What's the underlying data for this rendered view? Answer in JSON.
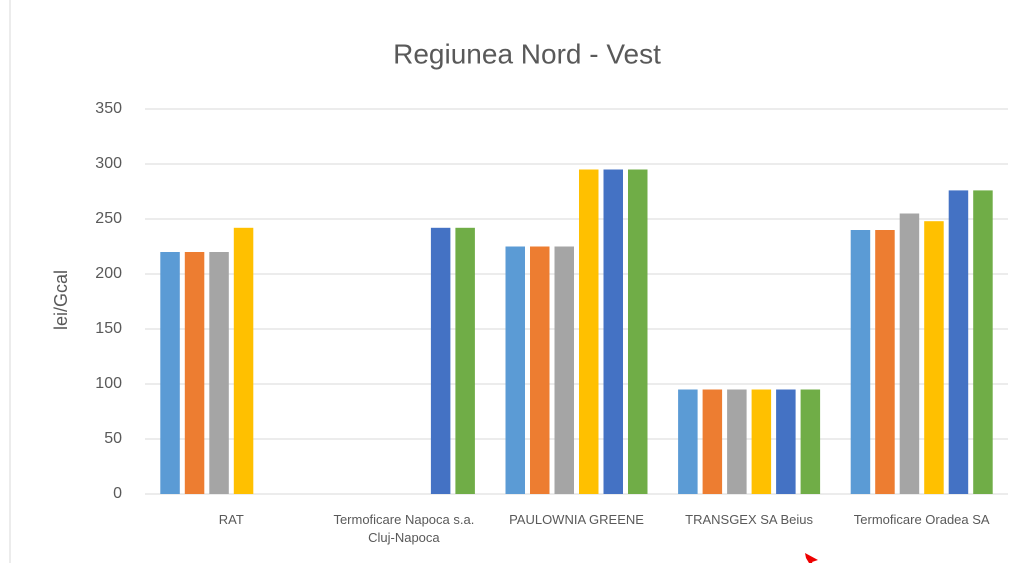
{
  "chart_data": {
    "type": "bar",
    "title": "Regiunea Nord - Vest",
    "y_label": "lei/Gcal",
    "categories": [
      "RAT",
      "Termoficare Napoca s.a. Cluj-Napoca",
      "PAULOWNIA GREENE",
      "TRANSGEX SA Beius",
      "Termoficare Oradea SA"
    ],
    "series": [
      {
        "color": "#5b9bd5",
        "values": [
          220,
          null,
          225,
          95,
          240
        ]
      },
      {
        "color": "#ed7d31",
        "values": [
          220,
          null,
          225,
          95,
          240
        ]
      },
      {
        "color": "#a5a5a5",
        "values": [
          220,
          null,
          225,
          95,
          255
        ]
      },
      {
        "color": "#ffc000",
        "values": [
          242,
          null,
          295,
          95,
          248
        ]
      },
      {
        "color": "#4472c4",
        "values": [
          null,
          242,
          295,
          95,
          276
        ]
      },
      {
        "color": "#70ad47",
        "values": [
          null,
          242,
          295,
          95,
          276
        ]
      }
    ],
    "ylim": [
      0,
      350
    ],
    "yticks": [
      0,
      50,
      100,
      150,
      200,
      250,
      300,
      350
    ],
    "grid": true
  }
}
